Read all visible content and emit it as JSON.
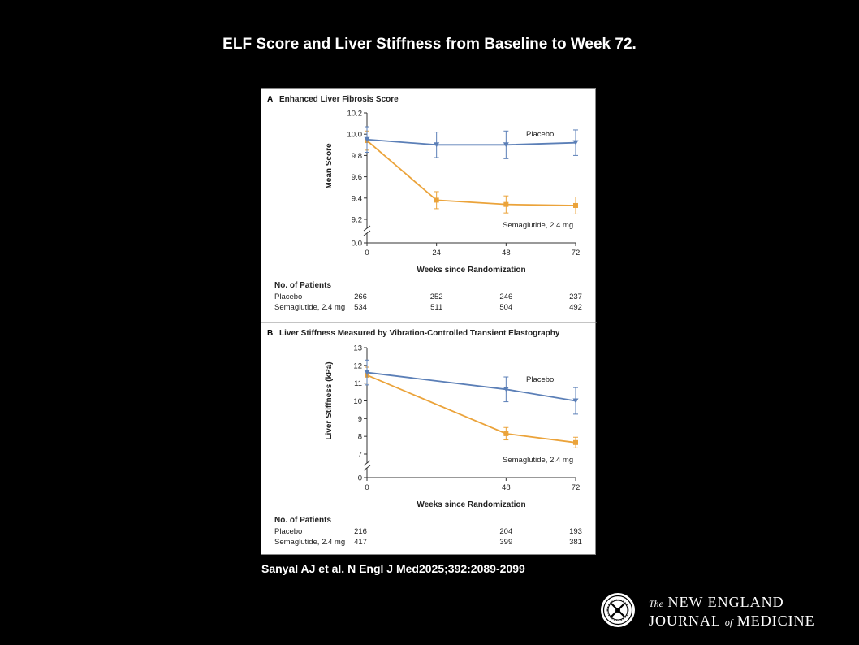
{
  "slide": {
    "title": "ELF Score and Liver Stiffness from Baseline to Week 72.",
    "citation": "Sanyal AJ et al. N Engl J Med2025;392:2089-2099",
    "logo": {
      "the": "The",
      "line1": "NEW ENGLAND",
      "line2a": "JOURNAL",
      "of": "of",
      "line2b": "MEDICINE",
      "seal_icon": "nejm-seal-icon"
    }
  },
  "colors": {
    "placebo": "#5b7fb7",
    "semaglutide": "#eba33a",
    "axis": "#333333"
  },
  "chart_data": [
    {
      "panel_letter": "A",
      "title": "Enhanced Liver Fibrosis Score",
      "type": "line",
      "xlabel": "Weeks since Randomization",
      "ylabel": "Mean Score",
      "x": [
        0,
        24,
        48,
        72
      ],
      "xticks": [
        "0",
        "24",
        "48",
        "72"
      ],
      "ylim": [
        9.2,
        10.2
      ],
      "yticks": [
        "0.0",
        "9.2",
        "9.4",
        "9.6",
        "9.8",
        "10.0",
        "10.2"
      ],
      "axis_break": true,
      "series": [
        {
          "name": "Placebo",
          "values": [
            9.95,
            9.9,
            9.9,
            9.92
          ],
          "err": [
            0.12,
            0.12,
            0.13,
            0.12
          ],
          "marker": "triangle-down"
        },
        {
          "name": "Semaglutide, 2.4 mg",
          "values": [
            9.94,
            9.38,
            9.34,
            9.33
          ],
          "err": [
            0.09,
            0.08,
            0.08,
            0.08
          ],
          "marker": "square"
        }
      ],
      "patients": {
        "heading": "No. of Patients",
        "rows": [
          {
            "label": "Placebo",
            "values": [
              "266",
              "252",
              "246",
              "237"
            ]
          },
          {
            "label": "Semaglutide, 2.4 mg",
            "values": [
              "534",
              "511",
              "504",
              "492"
            ]
          }
        ]
      }
    },
    {
      "panel_letter": "B",
      "title": "Liver Stiffness Measured by Vibration-Controlled Transient Elastography",
      "type": "line",
      "xlabel": "Weeks since Randomization",
      "ylabel": "Liver Stiffness (kPa)",
      "x": [
        0,
        48,
        72
      ],
      "xticks": [
        "0",
        "48",
        "72"
      ],
      "ylim": [
        7,
        13
      ],
      "yticks": [
        "0",
        "7",
        "8",
        "9",
        "10",
        "11",
        "12",
        "13"
      ],
      "axis_break": true,
      "series": [
        {
          "name": "Placebo",
          "values": [
            11.6,
            10.65,
            10.0
          ],
          "err": [
            0.7,
            0.7,
            0.75
          ],
          "marker": "triangle-down"
        },
        {
          "name": "Semaglutide, 2.4 mg",
          "values": [
            11.45,
            8.15,
            7.65
          ],
          "err": [
            0.45,
            0.35,
            0.3
          ],
          "marker": "square"
        }
      ],
      "patients": {
        "heading": "No. of Patients",
        "rows": [
          {
            "label": "Placebo",
            "values": [
              "216",
              "204",
              "193"
            ]
          },
          {
            "label": "Semaglutide, 2.4 mg",
            "values": [
              "417",
              "399",
              "381"
            ]
          }
        ]
      }
    }
  ]
}
